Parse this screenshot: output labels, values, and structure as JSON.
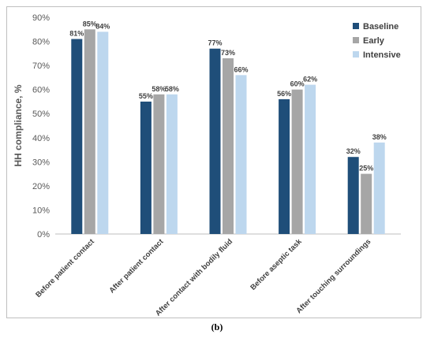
{
  "caption": "(b)",
  "chart_data": {
    "type": "bar",
    "title": "",
    "xlabel": "",
    "ylabel": "HH compliance, %",
    "ylim": [
      0,
      90
    ],
    "yticks": [
      "0%",
      "10%",
      "20%",
      "30%",
      "40%",
      "50%",
      "60%",
      "70%",
      "80%",
      "90%"
    ],
    "categories": [
      "Before patient contact",
      "After patient contact",
      "After contact with bodily fluid",
      "Before aseptic task",
      "After touching surroundings"
    ],
    "series": [
      {
        "name": "Baseline",
        "color": "#1f4e79",
        "values": [
          81,
          55,
          77,
          56,
          32
        ],
        "labels": [
          "81%",
          "55%",
          "77%",
          "56%",
          "32%"
        ]
      },
      {
        "name": "Early",
        "color": "#a6a6a6",
        "values": [
          85,
          58,
          73,
          60,
          25
        ],
        "labels": [
          "85%",
          "58%",
          "73%",
          "60%",
          "25%"
        ]
      },
      {
        "name": "Intensive",
        "color": "#bdd7ee",
        "values": [
          84,
          58,
          66,
          62,
          38
        ],
        "labels": [
          "84%",
          "58%",
          "66%",
          "62%",
          "38%"
        ]
      }
    ],
    "legend_position": "top-right",
    "grid": false
  }
}
